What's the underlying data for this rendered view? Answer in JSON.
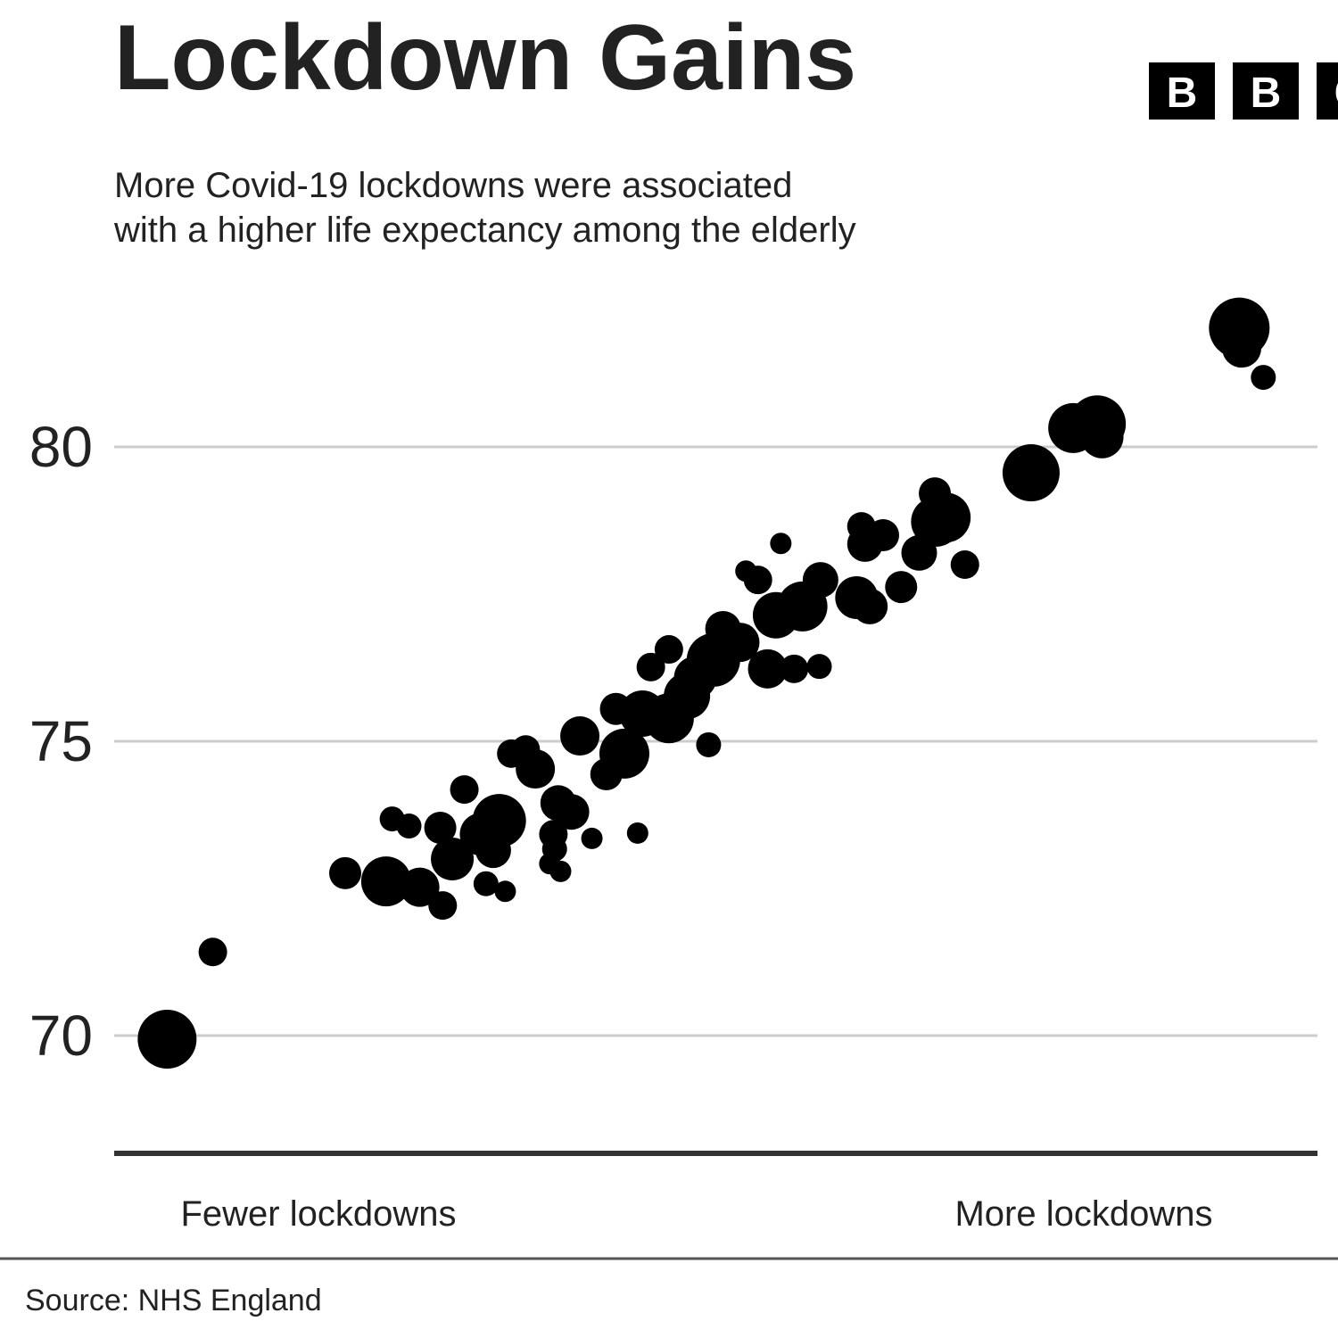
{
  "chart_data": {
    "type": "scatter",
    "title": "Lockdown Gains",
    "subtitle": [
      "More Covid-19 lockdowns were associated",
      "with a higher life expectancy among the elderly"
    ],
    "x_annotations": [
      "Fewer lockdowns",
      "More lockdowns"
    ],
    "source": "Source: NHS England",
    "logo": [
      "B",
      "B",
      "C"
    ],
    "color": "#000000",
    "grid": true,
    "xlim": [
      0,
      100
    ],
    "ylim": [
      68,
      83
    ],
    "yticks": [
      70,
      75,
      80
    ],
    "x": [
      4.4,
      8.2,
      19.2,
      22.6,
      25.4,
      27.3,
      23.1,
      24.5,
      27.1,
      28.1,
      29.1,
      30.9,
      32.5,
      31.5,
      32.0,
      30.5,
      33.0,
      34.2,
      35.0,
      36.5,
      36.6,
      36.2,
      37.1,
      36.9,
      38.0,
      39.7,
      38.7,
      40.9,
      41.7,
      42.4,
      43.5,
      43.9,
      44.6,
      46.1,
      46.1,
      47.6,
      48.3,
      49.4,
      49.8,
      50.6,
      52.0,
      52.5,
      53.5,
      54.3,
      55.4,
      55.0,
      56.5,
      57.2,
      58.7,
      58.6,
      61.7,
      62.8,
      62.1,
      63.9,
      62.4,
      65.4,
      66.9,
      68.2,
      68.3,
      69.1,
      70.7,
      76.2,
      79.7,
      81.7,
      82.1,
      93.5,
      93.7,
      95.5
    ],
    "values": [
      69.94,
      71.42,
      72.76,
      72.62,
      72.52,
      72.21,
      73.68,
      73.56,
      73.53,
      73.0,
      74.18,
      72.58,
      72.45,
      73.15,
      73.65,
      73.42,
      74.79,
      74.86,
      74.53,
      73.42,
      73.17,
      72.92,
      72.79,
      73.95,
      73.8,
      73.35,
      75.09,
      74.44,
      75.55,
      74.79,
      73.44,
      75.47,
      76.26,
      76.56,
      75.39,
      75.77,
      76.08,
      74.94,
      76.38,
      76.91,
      76.68,
      77.89,
      77.74,
      76.23,
      78.36,
      77.14,
      76.23,
      77.29,
      77.74,
      76.27,
      77.44,
      77.29,
      78.65,
      78.5,
      78.35,
      77.62,
      78.2,
      79.21,
      78.73,
      78.8,
      78.0,
      79.56,
      80.32,
      80.39,
      80.17,
      82.02,
      81.68,
      81.18
    ],
    "sizes": [
      33,
      16,
      18,
      28,
      22,
      16,
      14,
      14,
      18,
      24,
      16,
      14,
      12,
      20,
      30,
      24,
      16,
      16,
      22,
      16,
      14,
      12,
      12,
      20,
      20,
      12,
      22,
      18,
      18,
      28,
      12,
      26,
      16,
      16,
      28,
      26,
      24,
      14,
      30,
      20,
      22,
      12,
      16,
      22,
      12,
      26,
      16,
      28,
      20,
      14,
      24,
      20,
      16,
      18,
      20,
      18,
      20,
      18,
      28,
      28,
      16,
      32,
      28,
      32,
      24,
      34,
      22,
      14
    ]
  }
}
